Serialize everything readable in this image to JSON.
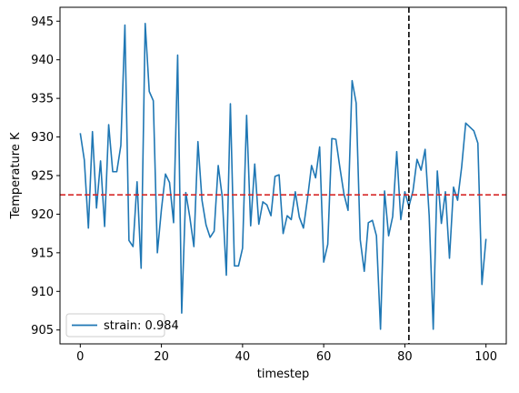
{
  "chart_data": {
    "type": "line",
    "xlabel": "timestep",
    "ylabel": "Temperature K",
    "xlim": [
      -5,
      105
    ],
    "ylim": [
      903.2,
      946.8
    ],
    "xticks": [
      0,
      20,
      40,
      60,
      80,
      100
    ],
    "yticks": [
      905,
      910,
      915,
      920,
      925,
      930,
      935,
      940,
      945
    ],
    "grid": false,
    "legend_position": "lower-left",
    "series": [
      {
        "name": "strain: 0.984",
        "color": "#1f77b4",
        "x": [
          0,
          1,
          2,
          3,
          4,
          5,
          6,
          7,
          8,
          9,
          10,
          11,
          12,
          13,
          14,
          15,
          16,
          17,
          18,
          19,
          20,
          21,
          22,
          23,
          24,
          25,
          26,
          27,
          28,
          29,
          30,
          31,
          32,
          33,
          34,
          35,
          36,
          37,
          38,
          39,
          40,
          41,
          42,
          43,
          44,
          45,
          46,
          47,
          48,
          49,
          50,
          51,
          52,
          53,
          54,
          55,
          56,
          57,
          58,
          59,
          60,
          61,
          62,
          63,
          64,
          65,
          66,
          67,
          68,
          69,
          70,
          71,
          72,
          73,
          74,
          75,
          76,
          77,
          78,
          79,
          80,
          81,
          82,
          83,
          84,
          85,
          86,
          87,
          88,
          89,
          90,
          91,
          92,
          93,
          94,
          95,
          96,
          97,
          98,
          99,
          100
        ],
        "y": [
          930.5,
          927.0,
          918.2,
          930.7,
          920.8,
          926.9,
          918.4,
          931.6,
          925.5,
          925.5,
          928.9,
          944.5,
          916.6,
          915.8,
          924.2,
          913.0,
          944.7,
          935.9,
          934.7,
          915.0,
          920.6,
          925.2,
          924.1,
          918.9,
          940.6,
          907.2,
          922.8,
          919.6,
          915.8,
          929.4,
          921.8,
          918.6,
          917.0,
          917.8,
          926.3,
          922.2,
          912.1,
          934.3,
          913.3,
          913.3,
          915.6,
          932.8,
          918.5,
          926.5,
          918.7,
          921.6,
          921.2,
          919.8,
          924.9,
          925.1,
          917.5,
          919.8,
          919.3,
          922.9,
          919.6,
          918.2,
          922.0,
          926.3,
          924.7,
          928.7,
          913.8,
          916.1,
          929.8,
          929.7,
          926.0,
          922.6,
          920.5,
          937.3,
          934.4,
          916.7,
          912.6,
          918.9,
          919.2,
          917.2,
          905.1,
          923.0,
          917.2,
          919.7,
          928.1,
          919.3,
          922.9,
          921.0,
          923.0,
          927.1,
          925.7,
          928.4,
          919.8,
          905.1,
          925.6,
          918.8,
          922.9,
          914.3,
          923.5,
          921.8,
          926.1,
          931.8,
          931.3,
          930.8,
          929.2,
          910.9,
          916.8
        ]
      }
    ],
    "reference_lines": [
      {
        "orientation": "horizontal",
        "value": 922.5,
        "color": "#d62728",
        "style": "dashed"
      },
      {
        "orientation": "vertical",
        "value": 81,
        "color": "#000000",
        "style": "dashed"
      }
    ]
  }
}
